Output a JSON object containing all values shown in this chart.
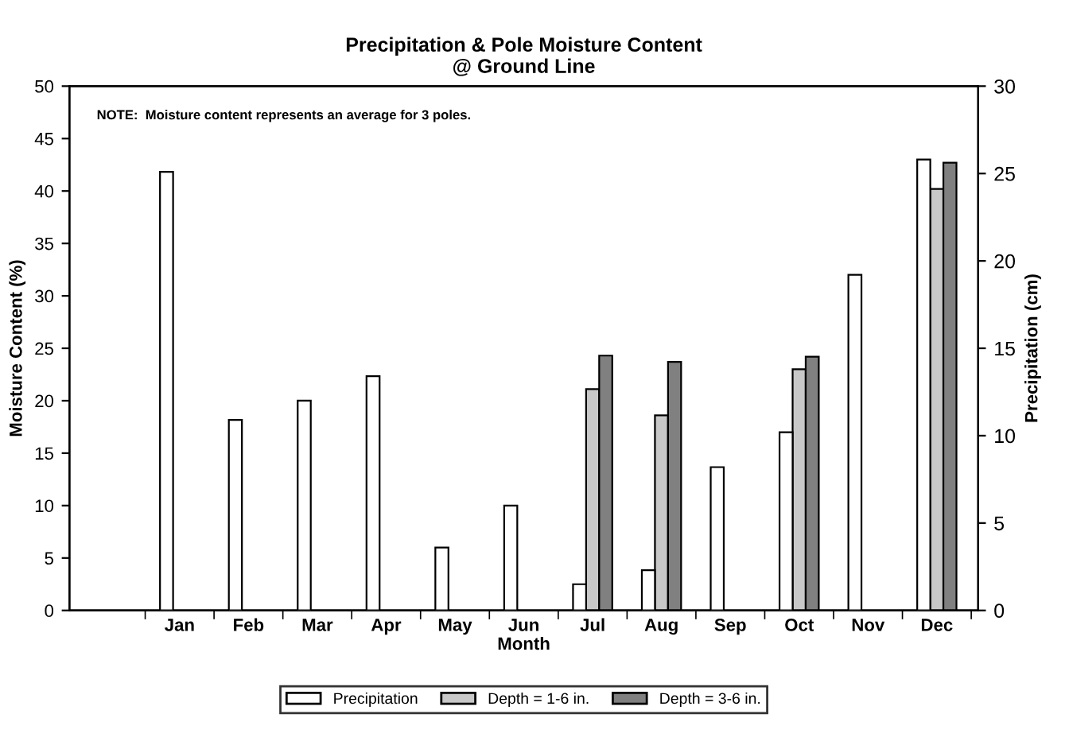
{
  "chart_data": {
    "type": "bar",
    "title": "Precipitation & Pole Moisture Content\n@ Ground Line",
    "xlabel": "Month",
    "ylabel": "Moisture Content (%)",
    "y2label": "Precipitation (cm)",
    "categories": [
      "Jan",
      "Feb",
      "Mar",
      "Apr",
      "May",
      "Jun",
      "Jul",
      "Aug",
      "Sep",
      "Oct",
      "Nov",
      "Dec"
    ],
    "series": [
      {
        "name": "Precipitation",
        "color": "#ffffff",
        "axis": "y2",
        "values": [
          25.1,
          10.9,
          12.0,
          13.4,
          3.6,
          6.0,
          1.5,
          2.3,
          8.2,
          10.2,
          19.2,
          25.8
        ]
      },
      {
        "name": "Depth = 1-6 in.",
        "color": "#c8c8c8",
        "values": [
          null,
          null,
          null,
          null,
          null,
          null,
          21.1,
          18.6,
          null,
          23.0,
          null,
          40.2
        ]
      },
      {
        "name": "Depth = 3-6 in.",
        "color": "#808080",
        "values": [
          null,
          null,
          null,
          null,
          null,
          null,
          24.3,
          23.7,
          null,
          24.2,
          null,
          42.7
        ]
      }
    ],
    "ylim": [
      0,
      50
    ],
    "yticks": [
      0,
      5,
      10,
      15,
      20,
      25,
      30,
      35,
      40,
      45,
      50
    ],
    "y2lim": [
      0,
      30
    ],
    "y2ticks": [
      0,
      5,
      10,
      15,
      20,
      25,
      30
    ],
    "annotations": [
      "NOTE:  Moisture content represents an average for 3 poles."
    ],
    "legend": "bottom",
    "grid": false
  }
}
